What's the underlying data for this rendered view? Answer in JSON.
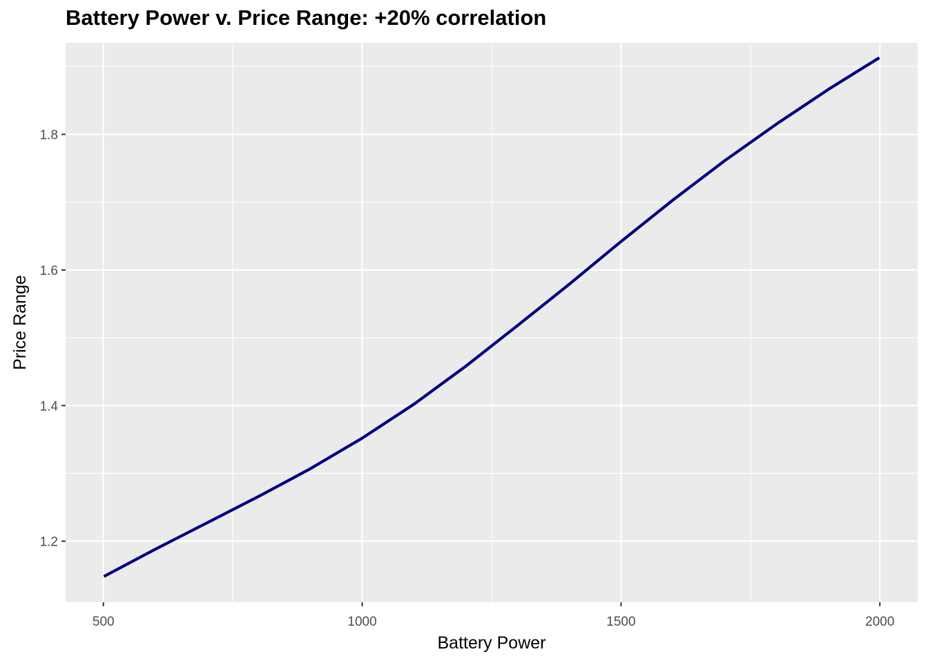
{
  "chart_data": {
    "type": "line",
    "title": "Battery Power v. Price Range: +20% correlation",
    "xlabel": "Battery Power",
    "ylabel": "Price Range",
    "xlim": [
      427,
      2073
    ],
    "ylim": [
      1.11,
      1.935
    ],
    "x_ticks": [
      500,
      1000,
      1500,
      2000
    ],
    "x_tick_labels": [
      "500",
      "1000",
      "1500",
      "2000"
    ],
    "y_ticks": [
      1.2,
      1.4,
      1.6,
      1.8
    ],
    "y_tick_labels": [
      "1.2",
      "1.4",
      "1.6",
      "1.8"
    ],
    "grid": true,
    "series": [
      {
        "color": "#00007f",
        "x": [
          501,
          600,
          700,
          800,
          900,
          1000,
          1100,
          1200,
          1300,
          1400,
          1500,
          1600,
          1700,
          1800,
          1900,
          1999
        ],
        "values": [
          1.148,
          1.188,
          1.227,
          1.266,
          1.307,
          1.352,
          1.402,
          1.458,
          1.518,
          1.579,
          1.642,
          1.703,
          1.761,
          1.815,
          1.866,
          1.913
        ]
      }
    ]
  }
}
